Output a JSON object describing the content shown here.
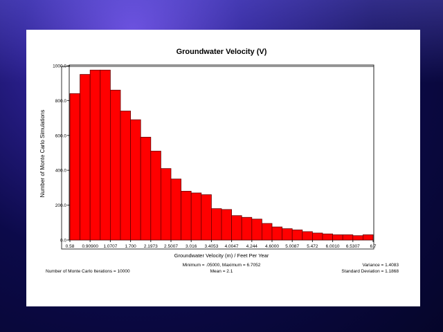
{
  "chart_data": {
    "type": "bar",
    "title": "Groundwater Velocity (V)",
    "xlabel": "Groundwater Velocity (m) / Feet Per Year",
    "ylabel": "Number of Monte Carlo Simulations",
    "ylim": [
      0,
      1000
    ],
    "yticks": [
      "0.0",
      "200.0",
      "400.0",
      "600.0",
      "800.0",
      "1000.0"
    ],
    "xtick_labels": [
      "0.58",
      "0.90900",
      "1.0707",
      "1.700",
      "2.1973",
      "2.5007",
      "3.016",
      "3.4053",
      "4.0047",
      "4.244",
      "4.6000",
      "5.0087",
      "5.472",
      "6.0010",
      "6.5307",
      "6.7"
    ],
    "values": [
      840,
      950,
      975,
      975,
      860,
      740,
      690,
      590,
      510,
      410,
      350,
      280,
      270,
      260,
      180,
      175,
      140,
      130,
      120,
      95,
      75,
      65,
      58,
      48,
      40,
      35,
      30,
      30,
      25,
      30
    ],
    "bar_color": "#ff0000",
    "bar_outline": "#660000"
  },
  "annotations": {
    "stats_center_1": "Minimum = .05000, Maximum = 6.7052",
    "stats_center_2": "Mean = 2.1",
    "stats_left": "Number of Monte Carlo Iterations = 10000",
    "stats_right_1": "Variance = 1.4083",
    "stats_right_2": "Standard Deviation = 1.1868"
  }
}
